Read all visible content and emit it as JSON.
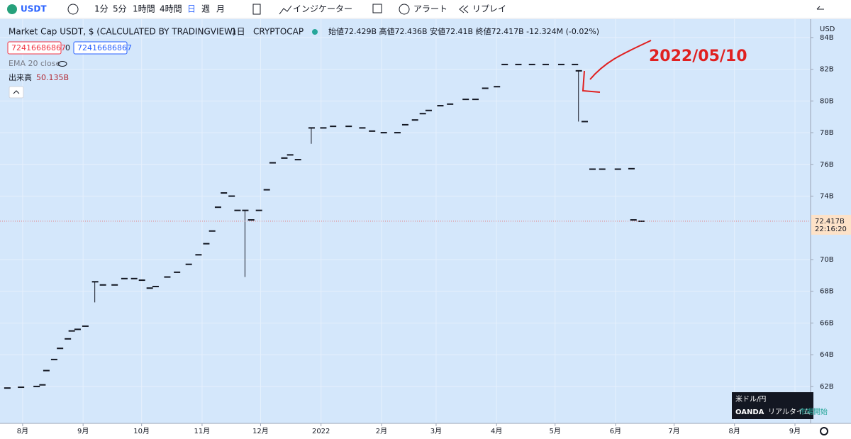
{
  "toolbar": {
    "symbol": "USDT",
    "intervals": [
      "1分",
      "5分",
      "1時間",
      "4時間",
      "日",
      "週",
      "月"
    ],
    "indicators": "インジケーター",
    "alert": "アラート",
    "replay": "リプレイ"
  },
  "legend": {
    "title": "Market Cap USDT, $ (CALCULATED BY TRADINGVIEW)",
    "interval": "1日",
    "exchange": "CRYPTOCAP",
    "ohlc": "始値72.429B 高値72.436B 安値72.41B 終値72.417B -12.324M (-0.02%)",
    "boxes": [
      "72416686867",
      "0",
      "72416686867"
    ],
    "ema": "EMA 20 close",
    "volume_label": "出来高",
    "volume_value": "50.135B"
  },
  "chart_data": {
    "type": "ohlc",
    "currency": "USD",
    "annotation": "2022/05/10",
    "color": "#131722",
    "x": [
      -8,
      -1,
      7,
      10,
      12,
      16,
      19,
      23,
      25,
      28,
      32,
      37,
      41,
      47,
      52,
      57,
      61,
      65,
      68,
      74,
      79,
      85,
      90,
      94,
      97,
      100,
      103,
      107,
      110,
      114,
      117,
      121,
      125,
      128,
      134,
      137,
      141,
      148,
      154,
      159,
      167,
      174,
      179,
      185,
      192,
      196,
      201,
      205,
      208,
      214,
      219,
      227,
      232,
      237,
      243,
      247,
      254,
      261,
      268,
      276,
      283,
      285,
      288,
      292,
      297,
      305,
      312,
      313,
      317
    ],
    "values": [
      61.9,
      61.95,
      62.0,
      62.1,
      63.0,
      63.7,
      64.4,
      65.0,
      65.5,
      65.6,
      65.8,
      68.6,
      68.4,
      68.4,
      68.8,
      68.8,
      68.7,
      68.2,
      68.3,
      68.9,
      69.2,
      69.7,
      70.3,
      71.0,
      71.8,
      73.3,
      74.2,
      74.0,
      73.1,
      73.1,
      72.5,
      73.1,
      74.4,
      76.1,
      76.4,
      76.6,
      76.3,
      78.3,
      78.3,
      78.4,
      78.4,
      78.3,
      78.1,
      78.0,
      78.0,
      78.5,
      78.8,
      79.2,
      79.4,
      79.7,
      79.8,
      80.1,
      80.1,
      80.8,
      80.9,
      82.3,
      82.3,
      82.3,
      82.3,
      82.3,
      82.3,
      81.9,
      78.7,
      75.7,
      75.7,
      75.7,
      75.73,
      72.5,
      72.417
    ],
    "lows": [
      null,
      null,
      null,
      null,
      null,
      null,
      null,
      null,
      null,
      null,
      null,
      67.3,
      null,
      null,
      null,
      null,
      null,
      null,
      null,
      null,
      null,
      null,
      null,
      null,
      null,
      null,
      null,
      null,
      null,
      68.9,
      null,
      null,
      null,
      null,
      null,
      null,
      null,
      77.3,
      null,
      null,
      null,
      null,
      null,
      null,
      null,
      null,
      null,
      null,
      null,
      null,
      null,
      null,
      null,
      null,
      null,
      null,
      null,
      null,
      null,
      null,
      null,
      78.7,
      null,
      null,
      null,
      null,
      null,
      null,
      null
    ],
    "ylim": [
      59.76,
      84.8
    ],
    "yticks": [
      {
        "value": 62,
        "label": "62B"
      },
      {
        "value": 64,
        "label": "64B"
      },
      {
        "value": 66,
        "label": "66B"
      },
      {
        "value": 68,
        "label": "68B"
      },
      {
        "value": 70,
        "label": "70B"
      },
      {
        "value": 74,
        "label": "74B"
      },
      {
        "value": 76,
        "label": "76B"
      },
      {
        "value": 78,
        "label": "78B"
      },
      {
        "value": 80,
        "label": "80B"
      },
      {
        "value": 82,
        "label": "82B"
      },
      {
        "value": 84,
        "label": "84B"
      }
    ],
    "xlim": [
      -11.6,
      404
    ],
    "xticks": [
      {
        "value": 0,
        "label": "8月"
      },
      {
        "value": 31,
        "label": "9月"
      },
      {
        "value": 61,
        "label": "10月"
      },
      {
        "value": 92,
        "label": "11月"
      },
      {
        "value": 122,
        "label": "12月"
      },
      {
        "value": 153,
        "label": "2022"
      },
      {
        "value": 184,
        "label": "2月"
      },
      {
        "value": 212,
        "label": "3月"
      },
      {
        "value": 243,
        "label": "4月"
      },
      {
        "value": 273,
        "label": "5月"
      },
      {
        "value": 304,
        "label": "6月"
      },
      {
        "value": 334,
        "label": "7月"
      },
      {
        "value": 365,
        "label": "8月"
      },
      {
        "value": 396,
        "label": "9月"
      }
    ],
    "grid": true,
    "price_label": {
      "value": 72.417,
      "label": "72.417B"
    },
    "countdown": "22:16:20"
  },
  "widget": {
    "pair": "米ドル/円",
    "broker": "OANDA",
    "feed": "リアルタイム",
    "status": "市場開始"
  }
}
